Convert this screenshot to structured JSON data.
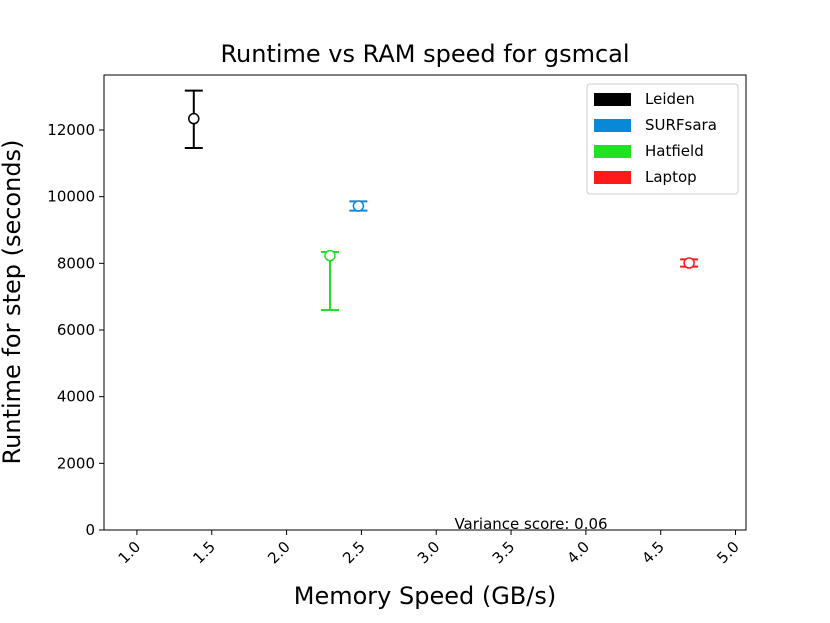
{
  "chart_data": {
    "type": "scatter",
    "title": "Runtime vs RAM speed for gsmcal",
    "xlabel": "Memory Speed (GB/s)",
    "ylabel": "Runtime for step (seconds)",
    "xlim": [
      0.78,
      5.07
    ],
    "ylim": [
      0,
      13650
    ],
    "xticks": [
      1.0,
      1.5,
      2.0,
      2.5,
      3.0,
      3.5,
      4.0,
      4.5,
      5.0
    ],
    "xtick_labels": [
      "1.0",
      "1.5",
      "2.0",
      "2.5",
      "3.0",
      "3.5",
      "4.0",
      "4.5",
      "5.0"
    ],
    "yticks": [
      0,
      2000,
      4000,
      6000,
      8000,
      10000,
      12000
    ],
    "ytick_labels": [
      "0",
      "2000",
      "4000",
      "6000",
      "8000",
      "10000",
      "12000"
    ],
    "grid": false,
    "legend_position": "top-right",
    "series": [
      {
        "name": "Leiden",
        "color": "#000000",
        "x": 1.38,
        "y": 12340,
        "err_low": 11460,
        "err_high": 13180
      },
      {
        "name": "SURFsara",
        "color": "#0a88d8",
        "x": 2.48,
        "y": 9720,
        "err_low": 9580,
        "err_high": 9860
      },
      {
        "name": "Hatfield",
        "color": "#22e022",
        "x": 2.29,
        "y": 8230,
        "err_low": 6600,
        "err_high": 8340
      },
      {
        "name": "Laptop",
        "color": "#ff1a1a",
        "x": 4.69,
        "y": 8010,
        "err_low": 7900,
        "err_high": 8120
      }
    ],
    "annotation": "Variance score: 0.06"
  }
}
